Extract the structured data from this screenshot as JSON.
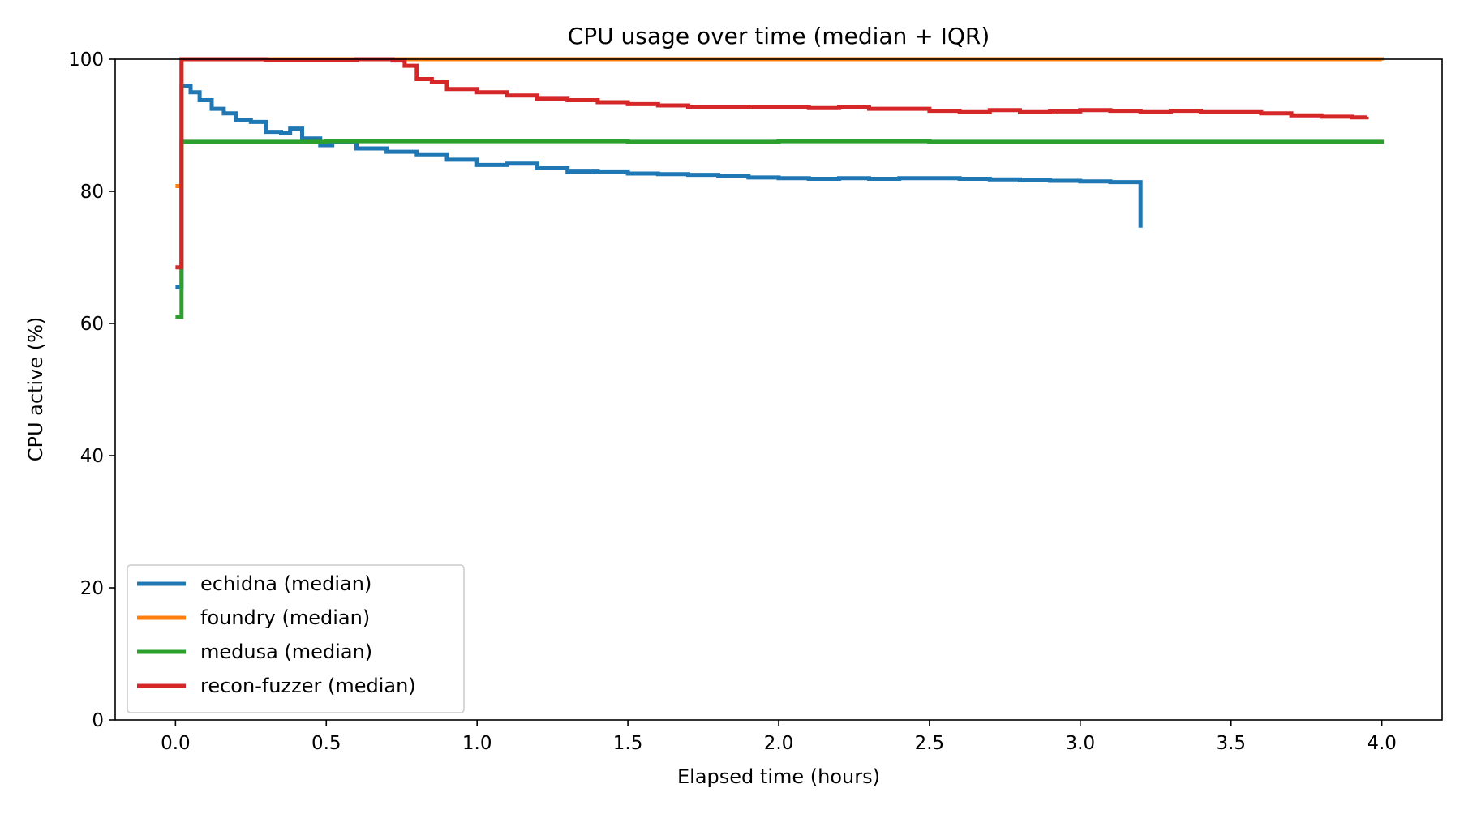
{
  "chart_data": {
    "type": "line",
    "step": true,
    "title": "CPU usage over time (median + IQR)",
    "xlabel": "Elapsed time (hours)",
    "ylabel": "CPU active (%)",
    "xlim": [
      -0.2,
      4.2
    ],
    "ylim": [
      0,
      100
    ],
    "xticks": [
      0.0,
      0.5,
      1.0,
      1.5,
      2.0,
      2.5,
      3.0,
      3.5,
      4.0
    ],
    "xtick_labels": [
      "0.0",
      "0.5",
      "1.0",
      "1.5",
      "2.0",
      "2.5",
      "3.0",
      "3.5",
      "4.0"
    ],
    "yticks": [
      0,
      20,
      40,
      60,
      80,
      100
    ],
    "ytick_labels": [
      "0",
      "20",
      "40",
      "60",
      "80",
      "100"
    ],
    "grid": false,
    "legend_position": "lower-left",
    "series": [
      {
        "name": "echidna (median)",
        "color": "#1f77b4",
        "points": [
          [
            0.0,
            65.5
          ],
          [
            0.02,
            65.5
          ],
          [
            0.02,
            96.0
          ],
          [
            0.05,
            95.0
          ],
          [
            0.08,
            93.8
          ],
          [
            0.12,
            92.5
          ],
          [
            0.16,
            91.8
          ],
          [
            0.2,
            90.8
          ],
          [
            0.25,
            90.5
          ],
          [
            0.3,
            89.0
          ],
          [
            0.35,
            88.8
          ],
          [
            0.38,
            89.5
          ],
          [
            0.42,
            88.0
          ],
          [
            0.48,
            87.0
          ],
          [
            0.52,
            87.5
          ],
          [
            0.6,
            86.5
          ],
          [
            0.7,
            86.0
          ],
          [
            0.8,
            85.5
          ],
          [
            0.9,
            84.8
          ],
          [
            1.0,
            84.0
          ],
          [
            1.1,
            84.2
          ],
          [
            1.2,
            83.5
          ],
          [
            1.3,
            83.0
          ],
          [
            1.4,
            82.9
          ],
          [
            1.5,
            82.7
          ],
          [
            1.6,
            82.6
          ],
          [
            1.7,
            82.5
          ],
          [
            1.8,
            82.3
          ],
          [
            1.9,
            82.1
          ],
          [
            2.0,
            82.0
          ],
          [
            2.1,
            81.9
          ],
          [
            2.2,
            82.0
          ],
          [
            2.3,
            81.9
          ],
          [
            2.4,
            82.0
          ],
          [
            2.5,
            82.0
          ],
          [
            2.6,
            81.9
          ],
          [
            2.7,
            81.8
          ],
          [
            2.8,
            81.7
          ],
          [
            2.9,
            81.6
          ],
          [
            3.0,
            81.5
          ],
          [
            3.1,
            81.4
          ],
          [
            3.2,
            81.3
          ],
          [
            3.2,
            74.5
          ]
        ]
      },
      {
        "name": "foundry (median)",
        "color": "#ff7f0e",
        "points": [
          [
            0.0,
            80.8
          ],
          [
            0.02,
            80.8
          ],
          [
            0.02,
            100.0
          ],
          [
            4.0,
            99.8
          ]
        ]
      },
      {
        "name": "medusa (median)",
        "color": "#2ca02c",
        "points": [
          [
            0.0,
            61.0
          ],
          [
            0.02,
            61.0
          ],
          [
            0.02,
            87.5
          ],
          [
            0.5,
            87.6
          ],
          [
            1.0,
            87.6
          ],
          [
            1.5,
            87.5
          ],
          [
            2.0,
            87.6
          ],
          [
            2.5,
            87.5
          ],
          [
            3.0,
            87.5
          ],
          [
            3.5,
            87.5
          ],
          [
            4.0,
            87.8
          ]
        ]
      },
      {
        "name": "recon-fuzzer (median)",
        "color": "#d62728",
        "points": [
          [
            0.0,
            68.5
          ],
          [
            0.02,
            68.5
          ],
          [
            0.02,
            100.0
          ],
          [
            0.3,
            99.9
          ],
          [
            0.6,
            100.0
          ],
          [
            0.72,
            99.8
          ],
          [
            0.76,
            99.0
          ],
          [
            0.8,
            97.0
          ],
          [
            0.85,
            96.5
          ],
          [
            0.9,
            95.5
          ],
          [
            1.0,
            95.0
          ],
          [
            1.1,
            94.5
          ],
          [
            1.2,
            94.0
          ],
          [
            1.3,
            93.8
          ],
          [
            1.4,
            93.5
          ],
          [
            1.5,
            93.2
          ],
          [
            1.6,
            93.0
          ],
          [
            1.7,
            92.8
          ],
          [
            1.8,
            92.8
          ],
          [
            1.9,
            92.7
          ],
          [
            2.0,
            92.7
          ],
          [
            2.1,
            92.6
          ],
          [
            2.2,
            92.7
          ],
          [
            2.3,
            92.5
          ],
          [
            2.4,
            92.5
          ],
          [
            2.5,
            92.2
          ],
          [
            2.6,
            92.0
          ],
          [
            2.7,
            92.3
          ],
          [
            2.8,
            92.0
          ],
          [
            2.9,
            92.1
          ],
          [
            3.0,
            92.3
          ],
          [
            3.1,
            92.2
          ],
          [
            3.2,
            92.0
          ],
          [
            3.3,
            92.2
          ],
          [
            3.4,
            92.0
          ],
          [
            3.5,
            92.0
          ],
          [
            3.6,
            91.8
          ],
          [
            3.7,
            91.5
          ],
          [
            3.8,
            91.3
          ],
          [
            3.9,
            91.2
          ],
          [
            3.95,
            91.3
          ]
        ]
      }
    ]
  }
}
